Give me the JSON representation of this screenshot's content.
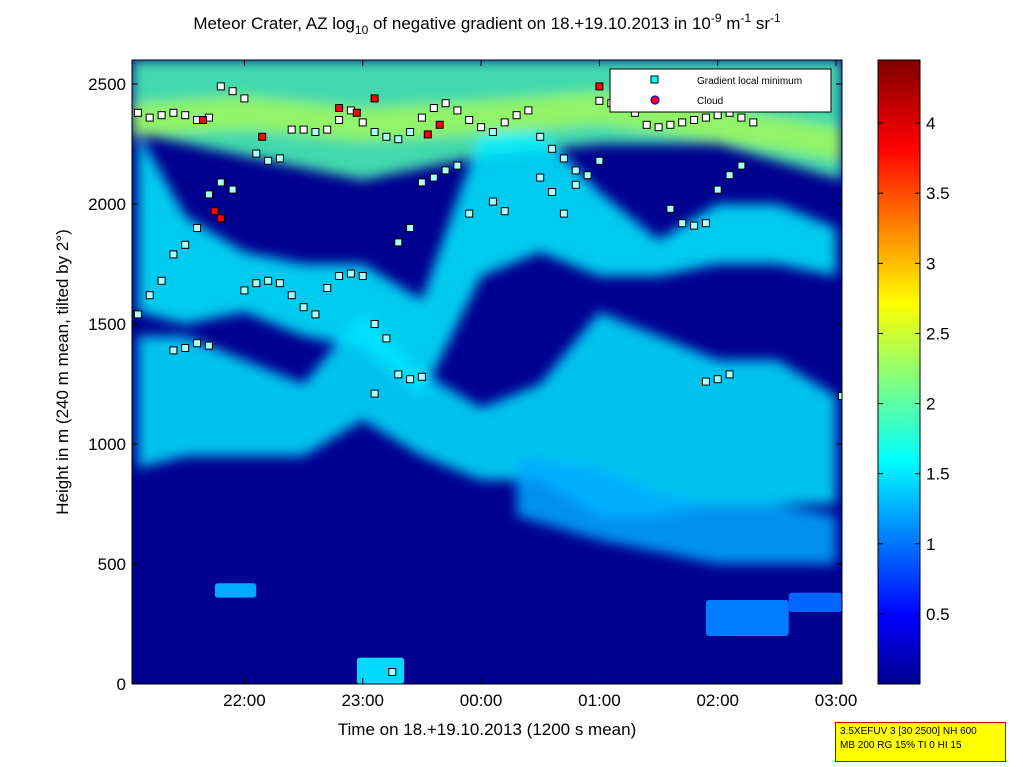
{
  "chart_data": {
    "type": "heatmap",
    "title_parts": {
      "a": "Meteor Crater, AZ log",
      "sub": "10",
      "b": " of negative gradient on 18.+19.10.2013 in 10",
      "sup1": "-9",
      "c": " m",
      "sup2": "-1",
      "d": " sr",
      "sup3": "-1"
    },
    "xlabel": "Time on 18.+19.10.2013 (1200 s mean)",
    "ylabel": "Height in m (240 m mean, tilted by 2°)",
    "x_ticks": [
      "22:00",
      "23:00",
      "00:00",
      "01:00",
      "02:00",
      "03:00"
    ],
    "x_tick_hours": [
      22,
      23,
      24,
      25,
      26,
      27
    ],
    "xlim_hours": [
      21.05,
      27.05
    ],
    "y_ticks": [
      0,
      500,
      1000,
      1500,
      2000,
      2500
    ],
    "ylim": [
      0,
      2600
    ],
    "colorbar": {
      "ticks": [
        "0.5",
        "1",
        "1.5",
        "2",
        "2.5",
        "3",
        "3.5",
        "4"
      ],
      "tick_values": [
        0.5,
        1,
        1.5,
        2,
        2.5,
        3,
        3.5,
        4
      ],
      "range": [
        0,
        4.45
      ],
      "colormap": "jet"
    },
    "legend": {
      "placement": "top-right",
      "entries": [
        {
          "label": "Gradient local minimum",
          "color": "#00ffff"
        },
        {
          "label": "Cloud",
          "color": "#ff0000"
        }
      ]
    },
    "bands": [
      {
        "name": "top band",
        "points": [
          [
            21.05,
            2300,
            2600
          ],
          [
            22,
            2200,
            2600
          ],
          [
            23,
            2100,
            2600
          ],
          [
            24,
            2200,
            2600
          ],
          [
            25,
            2250,
            2600
          ],
          [
            26,
            2250,
            2600
          ],
          [
            27.05,
            2100,
            2600
          ]
        ]
      },
      {
        "name": "upper layer",
        "points": [
          [
            21.1,
            1550,
            2300
          ],
          [
            21.5,
            1500,
            1950
          ],
          [
            22,
            1550,
            1800
          ],
          [
            22.5,
            1450,
            1750
          ],
          [
            23,
            1400,
            1750
          ],
          [
            23.5,
            1200,
            1600
          ],
          [
            24,
            1700,
            2300
          ],
          [
            24.5,
            1800,
            2300
          ],
          [
            25,
            1700,
            2050
          ],
          [
            25.5,
            1700,
            1850
          ],
          [
            26,
            1750,
            2000
          ],
          [
            26.5,
            1750,
            2000
          ],
          [
            27,
            1700,
            1900
          ]
        ]
      },
      {
        "name": "middle layer",
        "points": [
          [
            21.1,
            900,
            1450
          ],
          [
            21.5,
            950,
            1450
          ],
          [
            22,
            950,
            1350
          ],
          [
            22.5,
            950,
            1250
          ],
          [
            23,
            1100,
            1550
          ],
          [
            23.5,
            950,
            1300
          ],
          [
            24,
            850,
            1150
          ],
          [
            24.5,
            850,
            1250
          ],
          [
            25,
            700,
            1550
          ],
          [
            25.5,
            700,
            1450
          ],
          [
            26,
            750,
            1350
          ],
          [
            26.5,
            750,
            1350
          ],
          [
            27,
            750,
            1200
          ]
        ]
      },
      {
        "name": "low layer",
        "points": [
          [
            24.3,
            700,
            950
          ],
          [
            25,
            600,
            900
          ],
          [
            25.5,
            550,
            800
          ],
          [
            26,
            500,
            750
          ],
          [
            26.5,
            500,
            750
          ],
          [
            27,
            500,
            700
          ]
        ]
      }
    ],
    "patches": [
      {
        "x": [
          22.95,
          23.35
        ],
        "y": [
          0,
          110
        ],
        "level": 1.5
      },
      {
        "x": [
          21.75,
          22.1
        ],
        "y": [
          360,
          420
        ],
        "level": 1.3
      },
      {
        "x": [
          25.9,
          26.6
        ],
        "y": [
          200,
          350
        ],
        "level": 1.1
      },
      {
        "x": [
          26.6,
          27.05
        ],
        "y": [
          300,
          380
        ],
        "level": 1.0
      }
    ],
    "series": [
      {
        "name": "Gradient local minimum",
        "points": [
          [
            21.1,
            2380
          ],
          [
            21.2,
            2360
          ],
          [
            21.3,
            2370
          ],
          [
            21.4,
            2380
          ],
          [
            21.5,
            2370
          ],
          [
            21.6,
            2350
          ],
          [
            21.7,
            2360
          ],
          [
            21.8,
            2490
          ],
          [
            21.9,
            2470
          ],
          [
            22.0,
            2440
          ],
          [
            22.1,
            2210
          ],
          [
            22.2,
            2180
          ],
          [
            22.3,
            2190
          ],
          [
            22.4,
            2310
          ],
          [
            22.5,
            2310
          ],
          [
            22.6,
            2300
          ],
          [
            22.7,
            2310
          ],
          [
            22.8,
            2350
          ],
          [
            22.9,
            2390
          ],
          [
            23.0,
            2340
          ],
          [
            23.1,
            2300
          ],
          [
            23.2,
            2280
          ],
          [
            23.3,
            2270
          ],
          [
            23.4,
            2300
          ],
          [
            23.5,
            2360
          ],
          [
            23.6,
            2400
          ],
          [
            23.7,
            2420
          ],
          [
            23.8,
            2390
          ],
          [
            23.9,
            2350
          ],
          [
            24.0,
            2320
          ],
          [
            24.1,
            2300
          ],
          [
            24.2,
            2340
          ],
          [
            24.3,
            2370
          ],
          [
            24.4,
            2390
          ],
          [
            24.5,
            2280
          ],
          [
            24.6,
            2230
          ],
          [
            24.7,
            2190
          ],
          [
            24.8,
            2140
          ],
          [
            24.9,
            2120
          ],
          [
            25.0,
            2430
          ],
          [
            25.1,
            2420
          ],
          [
            25.2,
            2400
          ],
          [
            25.3,
            2380
          ],
          [
            25.4,
            2330
          ],
          [
            25.5,
            2320
          ],
          [
            25.6,
            2330
          ],
          [
            25.7,
            2340
          ],
          [
            25.8,
            2350
          ],
          [
            25.9,
            2360
          ],
          [
            26.0,
            2370
          ],
          [
            26.1,
            2380
          ],
          [
            26.2,
            2360
          ],
          [
            26.3,
            2340
          ],
          [
            21.1,
            1540
          ],
          [
            21.2,
            1620
          ],
          [
            21.3,
            1680
          ],
          [
            21.4,
            1790
          ],
          [
            21.5,
            1830
          ],
          [
            21.6,
            1900
          ],
          [
            21.7,
            2040
          ],
          [
            21.8,
            2090
          ],
          [
            21.9,
            2060
          ],
          [
            22.0,
            1640
          ],
          [
            22.1,
            1670
          ],
          [
            22.2,
            1680
          ],
          [
            22.3,
            1670
          ],
          [
            22.4,
            1620
          ],
          [
            22.5,
            1570
          ],
          [
            22.6,
            1540
          ],
          [
            22.7,
            1650
          ],
          [
            22.8,
            1700
          ],
          [
            22.9,
            1710
          ],
          [
            23.0,
            1700
          ],
          [
            23.1,
            1500
          ],
          [
            23.2,
            1440
          ],
          [
            23.3,
            1840
          ],
          [
            23.4,
            1900
          ],
          [
            23.5,
            2090
          ],
          [
            23.6,
            2110
          ],
          [
            23.7,
            2140
          ],
          [
            23.8,
            2160
          ],
          [
            23.9,
            1960
          ],
          [
            24.1,
            2010
          ],
          [
            24.2,
            1970
          ],
          [
            24.5,
            2110
          ],
          [
            24.6,
            2050
          ],
          [
            24.7,
            1960
          ],
          [
            24.8,
            2080
          ],
          [
            25.0,
            2180
          ],
          [
            25.6,
            1980
          ],
          [
            25.7,
            1920
          ],
          [
            25.8,
            1910
          ],
          [
            25.9,
            1920
          ],
          [
            26.0,
            2060
          ],
          [
            26.1,
            2120
          ],
          [
            26.2,
            2160
          ],
          [
            21.4,
            1390
          ],
          [
            21.5,
            1400
          ],
          [
            21.6,
            1420
          ],
          [
            21.7,
            1410
          ],
          [
            23.1,
            1210
          ],
          [
            23.3,
            1290
          ],
          [
            23.4,
            1270
          ],
          [
            23.5,
            1280
          ],
          [
            25.9,
            1260
          ],
          [
            26.0,
            1270
          ],
          [
            26.1,
            1290
          ],
          [
            27.05,
            1200
          ],
          [
            23.25,
            50
          ]
        ]
      },
      {
        "name": "Cloud",
        "points": [
          [
            21.65,
            2350
          ],
          [
            21.75,
            1970
          ],
          [
            21.8,
            1940
          ],
          [
            22.15,
            2280
          ],
          [
            22.8,
            2400
          ],
          [
            22.95,
            2380
          ],
          [
            23.1,
            2440
          ],
          [
            23.55,
            2290
          ],
          [
            23.65,
            2330
          ],
          [
            25.0,
            2490
          ]
        ]
      }
    ]
  },
  "infobox": {
    "line1": "3.5XEFUV 3 [30 2500] NH 600",
    "line2": "MB 200 RG 15% TI 0 HI 15"
  }
}
